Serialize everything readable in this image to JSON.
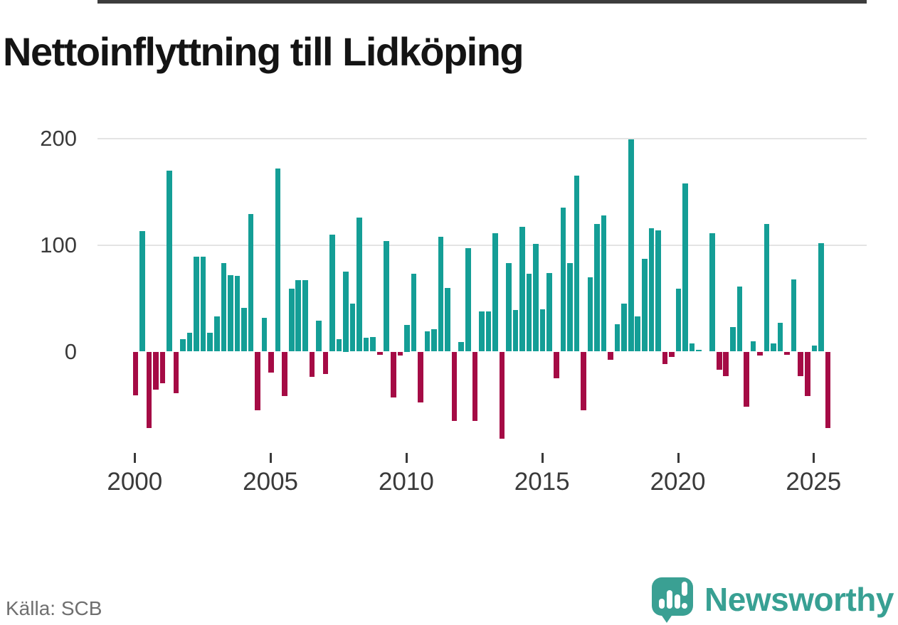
{
  "title": "Nettoinflyttning till Lidköping",
  "source_note": "Källa: SCB",
  "logo": {
    "text": "Newsworthy",
    "icon": "bar-chart-speech-bubble-icon",
    "color": "#3aa093"
  },
  "colors": {
    "positive_bar": "#149e96",
    "negative_bar": "#a50b45",
    "axis": "#3d3d3d",
    "gridline": "#e4e4e4",
    "tick_text": "#3a3a3a",
    "title_text": "#141414",
    "source_text": "#6f6f6f"
  },
  "chart_data": {
    "type": "bar",
    "title": "Nettoinflyttning till Lidköping",
    "frequency": "quarterly",
    "x_start": "2000-Q1",
    "x_end": "2025-Q3",
    "xlabel": "",
    "ylabel": "",
    "y_ticks": [
      0,
      100,
      200
    ],
    "ylim": [
      -95,
      215
    ],
    "grid": "horizontal",
    "legend": "none",
    "x_tick_labels": [
      "2000",
      "2005",
      "2010",
      "2015",
      "2020",
      "2025"
    ],
    "series_note": "net migration per quarter; positive = teal, negative = dark red",
    "values": [
      -41,
      113,
      -72,
      -36,
      -30,
      170,
      -39,
      12,
      18,
      89,
      89,
      18,
      33,
      83,
      72,
      71,
      41,
      129,
      -55,
      32,
      -20,
      172,
      -42,
      59,
      67,
      67,
      -24,
      29,
      -21,
      110,
      12,
      75,
      45,
      126,
      13,
      14,
      -3,
      104,
      -43,
      -4,
      25,
      73,
      -48,
      19,
      21,
      108,
      60,
      -65,
      9,
      97,
      -65,
      38,
      38,
      111,
      -82,
      83,
      39,
      117,
      73,
      101,
      40,
      74,
      -25,
      135,
      83,
      165,
      -55,
      70,
      120,
      128,
      -8,
      26,
      45,
      199,
      33,
      87,
      116,
      114,
      -12,
      -5,
      59,
      158,
      8,
      2,
      0,
      111,
      -17,
      -23,
      23,
      61,
      -52,
      10,
      -4,
      120,
      8,
      27,
      -3,
      68,
      -23,
      -42,
      6,
      102,
      -72
    ]
  }
}
